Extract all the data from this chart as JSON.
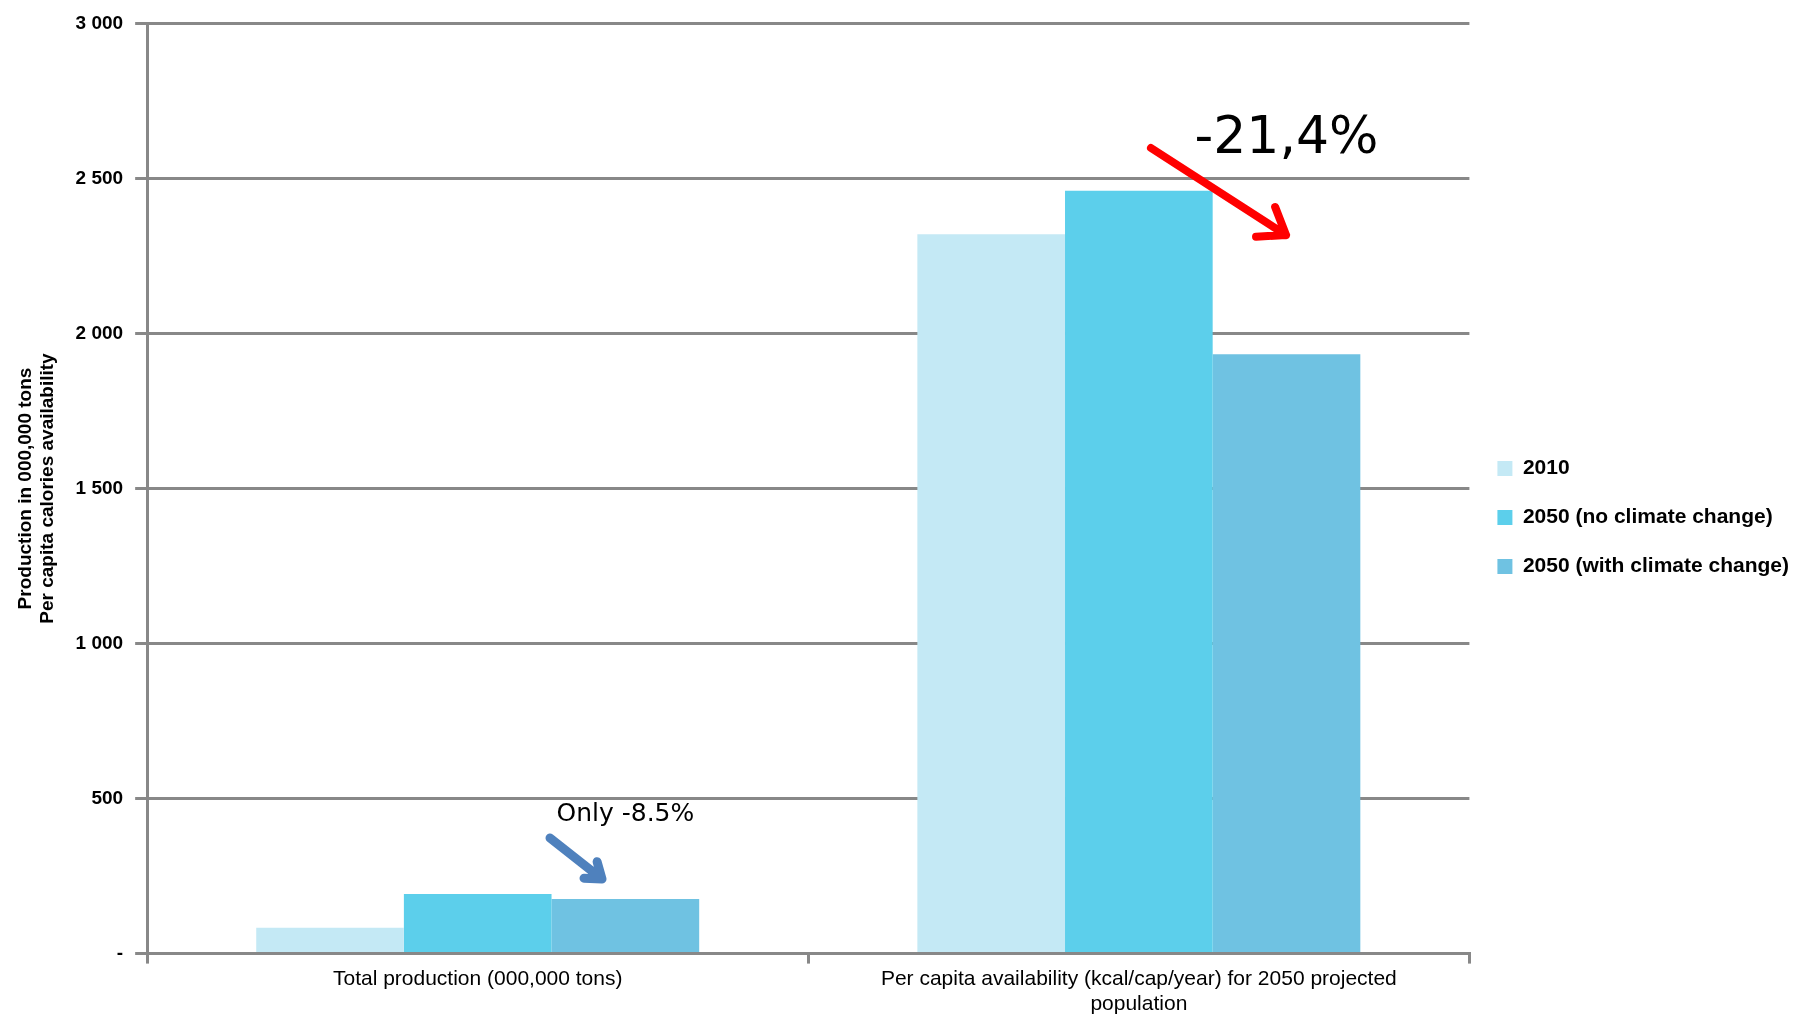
{
  "chart_data": {
    "type": "bar",
    "ylabel": "Production in 000,000 tons\nPer capita calories availability",
    "categories": [
      "Total production (000,000 tons)",
      "Per capita availability (kcal/cap/year) for 2050 projected population"
    ],
    "series": [
      {
        "name": "2010",
        "color": "#c4e9f5",
        "values": [
          83,
          2320
        ]
      },
      {
        "name": "2050 (no climate change)",
        "color": "#5ccfeb",
        "values": [
          192,
          2460
        ]
      },
      {
        "name": "2050 (with climate change)",
        "color": "#6fc2e2",
        "values": [
          176,
          1933
        ]
      }
    ],
    "ylim": [
      0,
      3000
    ],
    "yticks": [
      {
        "value": 0,
        "label": "-"
      },
      500,
      {
        "value": 1000,
        "label": "1 000"
      },
      {
        "value": 1500,
        "label": "1 500"
      },
      {
        "value": 2000,
        "label": "2 000"
      },
      {
        "value": 2500,
        "label": "2 500"
      },
      {
        "value": 3000,
        "label": "3 000"
      }
    ],
    "grid": "y",
    "legend": "right",
    "annotations": [
      "Only -8.5%",
      "-21,4%"
    ]
  }
}
